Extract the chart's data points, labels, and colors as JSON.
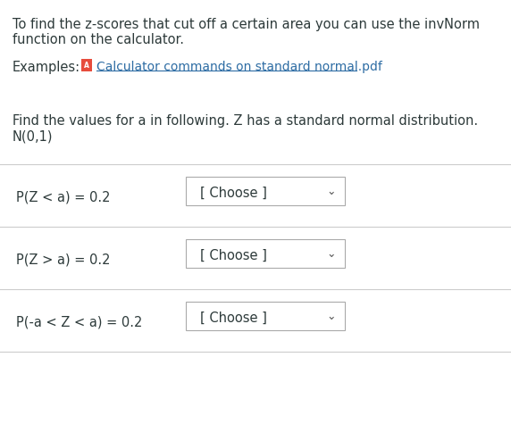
{
  "background_color": "#ffffff",
  "intro_text_line1": "To find the z-scores that cut off a certain area you can use the invNorm",
  "intro_text_line2": "function on the calculator.",
  "examples_label": "Examples:",
  "link_text": "Calculator commands on standard normal.pdf",
  "link_color": "#2e6da4",
  "find_text_line1": "Find the values for a in following. Z has a standard normal distribution.",
  "find_text_line2": "N(0,1)",
  "rows": [
    {
      "label": "P(Z < a) = 0.2"
    },
    {
      "label": "P(Z > a) = 0.2"
    },
    {
      "label": "P(-a < Z < a) = 0.2"
    }
  ],
  "dropdown_text": "[ Choose ]",
  "separator_color": "#cccccc",
  "text_color": "#2d3a3a",
  "dropdown_border_color": "#aaaaaa",
  "dropdown_bg": "#ffffff",
  "chevron_color": "#555555",
  "pdf_icon_color": "#e74c3c",
  "main_font_size": 10.5,
  "label_font_size": 10.5,
  "dropdown_font_size": 10.5
}
